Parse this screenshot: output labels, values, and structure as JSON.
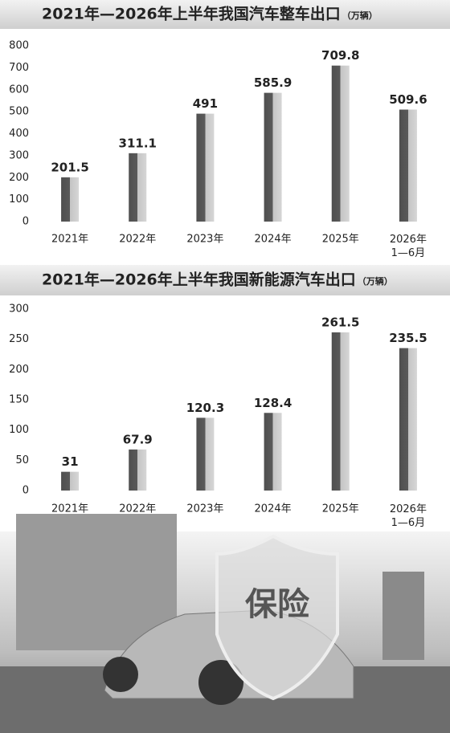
{
  "chart_data": [
    {
      "type": "bar",
      "title": "2021年—2026年上半年我国汽车整车出口",
      "unit": "（万辆）",
      "categories": [
        "2021年",
        "2022年",
        "2023年",
        "2024年",
        "2025年",
        "2026年\n1—6月"
      ],
      "values": [
        201.5,
        311.1,
        491,
        585.9,
        709.8,
        509.6
      ],
      "ylim": [
        0,
        800
      ],
      "yticks": [
        0,
        100,
        200,
        300,
        400,
        500,
        600,
        700,
        800
      ],
      "grid": false,
      "color": "#555555"
    },
    {
      "type": "bar",
      "title": "2021年—2026年上半年我国新能源汽车出口",
      "unit": "（万辆）",
      "categories": [
        "2021年",
        "2022年",
        "2023年",
        "2024年",
        "2025年",
        "2026年\n1—6月"
      ],
      "values": [
        31,
        67.9,
        120.3,
        128.4,
        261.5,
        235.5
      ],
      "ylim": [
        0,
        300
      ],
      "yticks": [
        0,
        50,
        100,
        150,
        200,
        250,
        300
      ],
      "grid": false,
      "color": "#555555"
    }
  ],
  "image_text": "保险"
}
